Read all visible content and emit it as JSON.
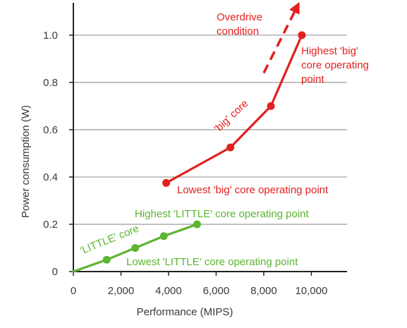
{
  "chart_data": {
    "type": "line",
    "xlabel": "Performance (MIPS)",
    "ylabel": "Power consumption (W)",
    "xlim": [
      0,
      11500
    ],
    "ylim": [
      0,
      1.08
    ],
    "x_ticks": [
      0,
      2000,
      4000,
      6000,
      8000,
      10000
    ],
    "x_tick_labels": [
      "0",
      "2,000",
      "4,000",
      "6,000",
      "8,000",
      "10,000"
    ],
    "y_ticks": [
      0,
      0.2,
      0.4,
      0.6,
      0.8,
      1.0
    ],
    "y_tick_labels": [
      "0",
      "0.2",
      "0.4",
      "0.6",
      "0.8",
      "1.0"
    ],
    "grid": "horizontal",
    "series": [
      {
        "name": "'LITTLE' core",
        "color": "#5db431",
        "points": [
          {
            "x": 0,
            "y": 0
          },
          {
            "x": 1400,
            "y": 0.05
          },
          {
            "x": 2600,
            "y": 0.1
          },
          {
            "x": 3800,
            "y": 0.15
          },
          {
            "x": 5200,
            "y": 0.2
          }
        ]
      },
      {
        "name": "'big' core",
        "color": "#e3201e",
        "points": [
          {
            "x": 3900,
            "y": 0.375
          },
          {
            "x": 6600,
            "y": 0.525
          },
          {
            "x": 8300,
            "y": 0.7
          },
          {
            "x": 9600,
            "y": 1.0
          }
        ]
      }
    ],
    "overdrive": {
      "from": {
        "x": 8000,
        "y": 0.84
      },
      "to": {
        "x": 9500,
        "y": 1.14
      },
      "color": "#e3201e"
    },
    "annotations": {
      "little_series_label": "'LITTLE' core",
      "big_series_label": "'big' core",
      "little_highest": "Highest 'LITTLE' core operating point",
      "little_lowest": "Lowest 'LITTLE' core operating point",
      "big_lowest": "Lowest 'big' core operating point",
      "big_highest_lines": [
        "Highest 'big'",
        "core operating",
        "point"
      ],
      "overdrive_lines": [
        "Overdrive",
        "condition"
      ]
    },
    "colors": {
      "axis": "#222222",
      "grid": "#9a9a9a",
      "text": "#3a3a3a",
      "little": "#5db431",
      "big": "#e3201e"
    }
  }
}
